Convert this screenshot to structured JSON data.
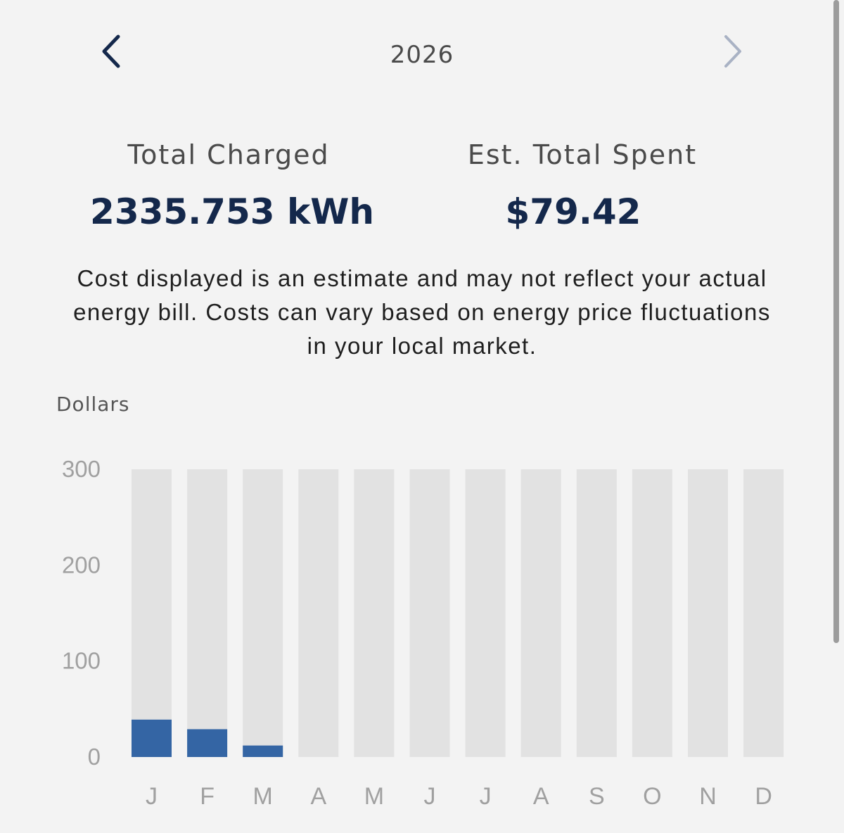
{
  "header": {
    "year": "2026",
    "prev_icon": "chevron-left-icon",
    "next_icon": "chevron-right-icon"
  },
  "stats": {
    "total_charged_label": "Total Charged",
    "total_charged_value": "2335.753 kWh",
    "est_total_spent_label": "Est. Total Spent",
    "est_total_spent_value": "$79.42"
  },
  "disclaimer": "Cost displayed is an estimate and may not reflect your actual energy bill. Costs can vary based on energy price fluctuations in your local market.",
  "colors": {
    "background": "#f3f3f3",
    "accent_navy": "#14284b",
    "bar_fill": "#3465a4",
    "bar_track": "#e2e2e2",
    "nav_disabled": "#a9b2c4"
  },
  "chart_data": {
    "type": "bar",
    "ylabel": "Dollars",
    "ylim": [
      0,
      300
    ],
    "yticks": [
      0,
      100,
      200,
      300
    ],
    "categories": [
      "J",
      "F",
      "M",
      "A",
      "M",
      "J",
      "J",
      "A",
      "S",
      "O",
      "N",
      "D"
    ],
    "values": [
      39,
      29,
      12,
      0,
      0,
      0,
      0,
      0,
      0,
      0,
      0,
      0
    ],
    "grid": false
  }
}
